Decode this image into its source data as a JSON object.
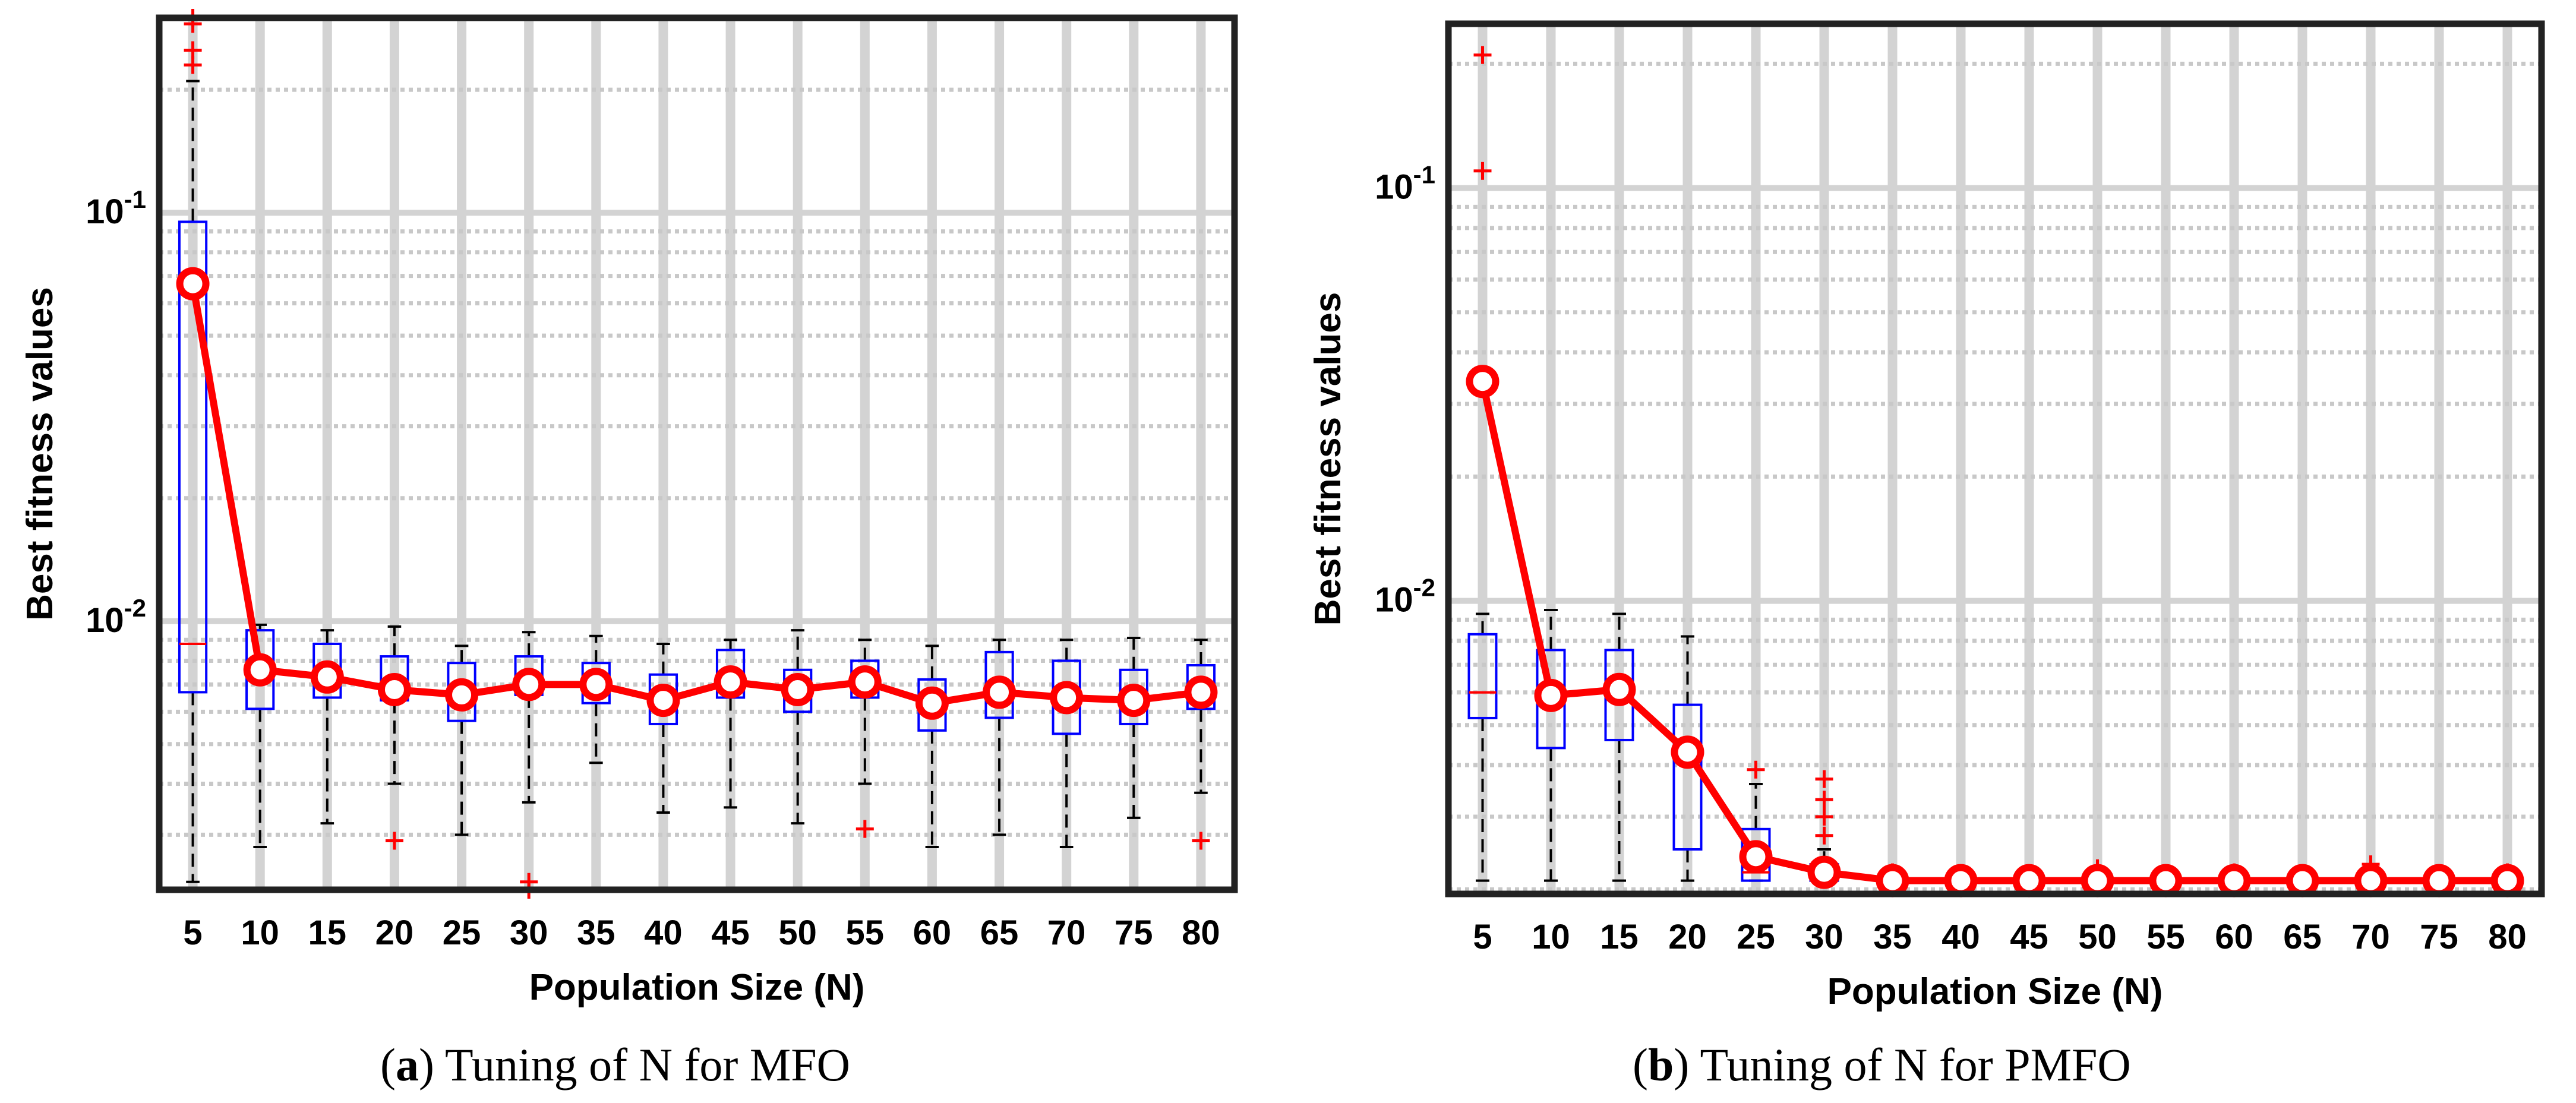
{
  "figure": {
    "panels": [
      {
        "label": "a",
        "caption_text": " Tuning of N for MFO"
      },
      {
        "label": "b",
        "caption_text": " Tuning of N for PMFO"
      }
    ]
  },
  "chart_data": [
    {
      "type": "box",
      "title": "",
      "caption": "(a) Tuning of N for MFO",
      "xlabel": "Population Size (N)",
      "ylabel": "Best fitness values",
      "yscale": "log",
      "ylim": [
        0.0022,
        0.3
      ],
      "ytick_values": [
        0.01,
        0.1
      ],
      "ytick_labels": [
        "10^-2",
        "10^-1"
      ],
      "categories": [
        "5",
        "10",
        "15",
        "20",
        "25",
        "30",
        "35",
        "40",
        "45",
        "50",
        "55",
        "60",
        "65",
        "70",
        "75",
        "80"
      ],
      "boxes": [
        {
          "q1": 0.0067,
          "median": 0.0088,
          "q3": 0.095,
          "wlow": 0.0023,
          "whigh": 0.21,
          "outliers": [
            0.23,
            0.25,
            0.29,
            0.3
          ]
        },
        {
          "q1": 0.0061,
          "median": 0.0078,
          "q3": 0.0095,
          "wlow": 0.0028,
          "whigh": 0.0098,
          "outliers": []
        },
        {
          "q1": 0.0065,
          "median": 0.0073,
          "q3": 0.0088,
          "wlow": 0.0032,
          "whigh": 0.0095,
          "outliers": []
        },
        {
          "q1": 0.0064,
          "median": 0.0069,
          "q3": 0.0082,
          "wlow": 0.004,
          "whigh": 0.0097,
          "outliers": [
            0.0029
          ]
        },
        {
          "q1": 0.0057,
          "median": 0.0066,
          "q3": 0.0079,
          "wlow": 0.003,
          "whigh": 0.0087,
          "outliers": []
        },
        {
          "q1": 0.0066,
          "median": 0.007,
          "q3": 0.0082,
          "wlow": 0.0036,
          "whigh": 0.0094,
          "outliers": [
            0.0022,
            0.0023
          ]
        },
        {
          "q1": 0.0063,
          "median": 0.0071,
          "q3": 0.0079,
          "wlow": 0.0045,
          "whigh": 0.0092,
          "outliers": []
        },
        {
          "q1": 0.0056,
          "median": 0.0063,
          "q3": 0.0074,
          "wlow": 0.0034,
          "whigh": 0.0088,
          "outliers": []
        },
        {
          "q1": 0.0065,
          "median": 0.007,
          "q3": 0.0085,
          "wlow": 0.0035,
          "whigh": 0.009,
          "outliers": []
        },
        {
          "q1": 0.006,
          "median": 0.0069,
          "q3": 0.0076,
          "wlow": 0.0032,
          "whigh": 0.0095,
          "outliers": []
        },
        {
          "q1": 0.0065,
          "median": 0.0071,
          "q3": 0.008,
          "wlow": 0.004,
          "whigh": 0.009,
          "outliers": [
            0.0031
          ]
        },
        {
          "q1": 0.0054,
          "median": 0.0063,
          "q3": 0.0072,
          "wlow": 0.0028,
          "whigh": 0.0087,
          "outliers": []
        },
        {
          "q1": 0.0058,
          "median": 0.0067,
          "q3": 0.0084,
          "wlow": 0.003,
          "whigh": 0.009,
          "outliers": []
        },
        {
          "q1": 0.0053,
          "median": 0.0064,
          "q3": 0.008,
          "wlow": 0.0028,
          "whigh": 0.009,
          "outliers": []
        },
        {
          "q1": 0.0056,
          "median": 0.0063,
          "q3": 0.0076,
          "wlow": 0.0033,
          "whigh": 0.0091,
          "outliers": []
        },
        {
          "q1": 0.0061,
          "median": 0.0067,
          "q3": 0.0078,
          "wlow": 0.0038,
          "whigh": 0.009,
          "outliers": [
            0.0029
          ]
        }
      ],
      "series": [
        {
          "name": "Mean",
          "color": "#ff0000",
          "values": [
            0.067,
            0.0076,
            0.0073,
            0.0068,
            0.0066,
            0.007,
            0.007,
            0.0064,
            0.0071,
            0.0068,
            0.0071,
            0.0063,
            0.0067,
            0.0065,
            0.0064,
            0.0067
          ]
        }
      ],
      "colors": {
        "box": "#0000ff",
        "median": "#ff0000",
        "whisker": "#000000",
        "outlier": "#ff0000",
        "mean_line": "#ff0000"
      }
    },
    {
      "type": "box",
      "title": "",
      "caption": "(b) Tuning of N for PMFO",
      "xlabel": "Population Size (N)",
      "ylabel": "Best fitness values",
      "yscale": "log",
      "ylim": [
        0.00195,
        0.25
      ],
      "ytick_values": [
        0.01,
        0.1
      ],
      "ytick_labels": [
        "10^-2",
        "10^-1"
      ],
      "categories": [
        "5",
        "10",
        "15",
        "20",
        "25",
        "30",
        "35",
        "40",
        "45",
        "50",
        "55",
        "60",
        "65",
        "70",
        "75",
        "80"
      ],
      "boxes": [
        {
          "q1": 0.0052,
          "median": 0.006,
          "q3": 0.0083,
          "wlow": 0.0021,
          "whigh": 0.0093,
          "outliers": [
            0.11,
            0.21
          ]
        },
        {
          "q1": 0.0044,
          "median": 0.0058,
          "q3": 0.0076,
          "wlow": 0.0021,
          "whigh": 0.0095,
          "outliers": []
        },
        {
          "q1": 0.0046,
          "median": 0.0059,
          "q3": 0.0076,
          "wlow": 0.0021,
          "whigh": 0.0093,
          "outliers": []
        },
        {
          "q1": 0.0025,
          "median": 0.0043,
          "q3": 0.0056,
          "wlow": 0.0021,
          "whigh": 0.0082,
          "outliers": []
        },
        {
          "q1": 0.0021,
          "median": 0.0022,
          "q3": 0.0028,
          "wlow": 0.0021,
          "whigh": 0.0036,
          "outliers": [
            0.0039
          ]
        },
        {
          "q1": 0.0021,
          "median": 0.0022,
          "q3": 0.0023,
          "wlow": 0.0021,
          "whigh": 0.0025,
          "outliers": [
            0.0027,
            0.003,
            0.0033,
            0.0037
          ]
        },
        {
          "q1": 0.00205,
          "median": 0.00207,
          "q3": 0.00212,
          "wlow": 0.002,
          "whigh": 0.00218,
          "outliers": [
            0.0022
          ]
        },
        {
          "q1": 0.00205,
          "median": 0.00207,
          "q3": 0.0021,
          "wlow": 0.002,
          "whigh": 0.00214,
          "outliers": []
        },
        {
          "q1": 0.00205,
          "median": 0.00207,
          "q3": 0.0021,
          "wlow": 0.002,
          "whigh": 0.00214,
          "outliers": []
        },
        {
          "q1": 0.00205,
          "median": 0.00208,
          "q3": 0.00211,
          "wlow": 0.002,
          "whigh": 0.00216,
          "outliers": [
            0.0022,
            0.00225
          ]
        },
        {
          "q1": 0.00204,
          "median": 0.00206,
          "q3": 0.00209,
          "wlow": 0.002,
          "whigh": 0.00213,
          "outliers": []
        },
        {
          "q1": 0.00205,
          "median": 0.00207,
          "q3": 0.0021,
          "wlow": 0.002,
          "whigh": 0.00214,
          "outliers": [
            0.0022
          ]
        },
        {
          "q1": 0.00204,
          "median": 0.00206,
          "q3": 0.00209,
          "wlow": 0.002,
          "whigh": 0.00213,
          "outliers": []
        },
        {
          "q1": 0.00205,
          "median": 0.00208,
          "q3": 0.00211,
          "wlow": 0.002,
          "whigh": 0.00216,
          "outliers": [
            0.0023
          ]
        },
        {
          "q1": 0.00205,
          "median": 0.00207,
          "q3": 0.0021,
          "wlow": 0.002,
          "whigh": 0.00214,
          "outliers": []
        },
        {
          "q1": 0.00205,
          "median": 0.00208,
          "q3": 0.00211,
          "wlow": 0.002,
          "whigh": 0.00216,
          "outliers": [
            0.0022
          ]
        }
      ],
      "series": [
        {
          "name": "Mean",
          "color": "#ff0000",
          "values": [
            0.034,
            0.0059,
            0.0061,
            0.0043,
            0.0024,
            0.0022,
            0.0021,
            0.0021,
            0.0021,
            0.0021,
            0.0021,
            0.0021,
            0.0021,
            0.0021,
            0.0021,
            0.0021
          ]
        }
      ],
      "colors": {
        "box": "#0000ff",
        "median": "#ff0000",
        "whisker": "#000000",
        "outlier": "#ff0000",
        "mean_line": "#ff0000"
      }
    }
  ]
}
